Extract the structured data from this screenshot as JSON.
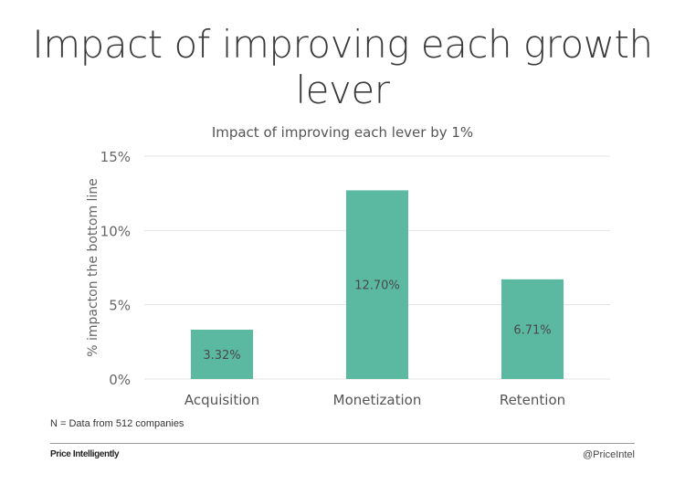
{
  "slide_title": "Impact of improving each growth lever",
  "chart_data": {
    "type": "bar",
    "title": "Impact of improving each lever by 1%",
    "ylabel": "% impacton the bottom line",
    "xlabel": "",
    "categories": [
      "Acquisition",
      "Monetization",
      "Retention"
    ],
    "values": [
      3.32,
      12.7,
      6.71
    ],
    "data_labels": [
      "3.32%",
      "12.70%",
      "6.71%"
    ],
    "ylim": [
      0,
      15
    ],
    "yticks": [
      0,
      5,
      10,
      15
    ],
    "ytick_labels": [
      "0%",
      "5%",
      "10%",
      "15%"
    ],
    "grid": true,
    "legend": "none",
    "bar_color": "#5bb9a1"
  },
  "footnote": "N = Data from 512 companies",
  "brand": "Price Intelligently",
  "handle": "@PriceIntel"
}
